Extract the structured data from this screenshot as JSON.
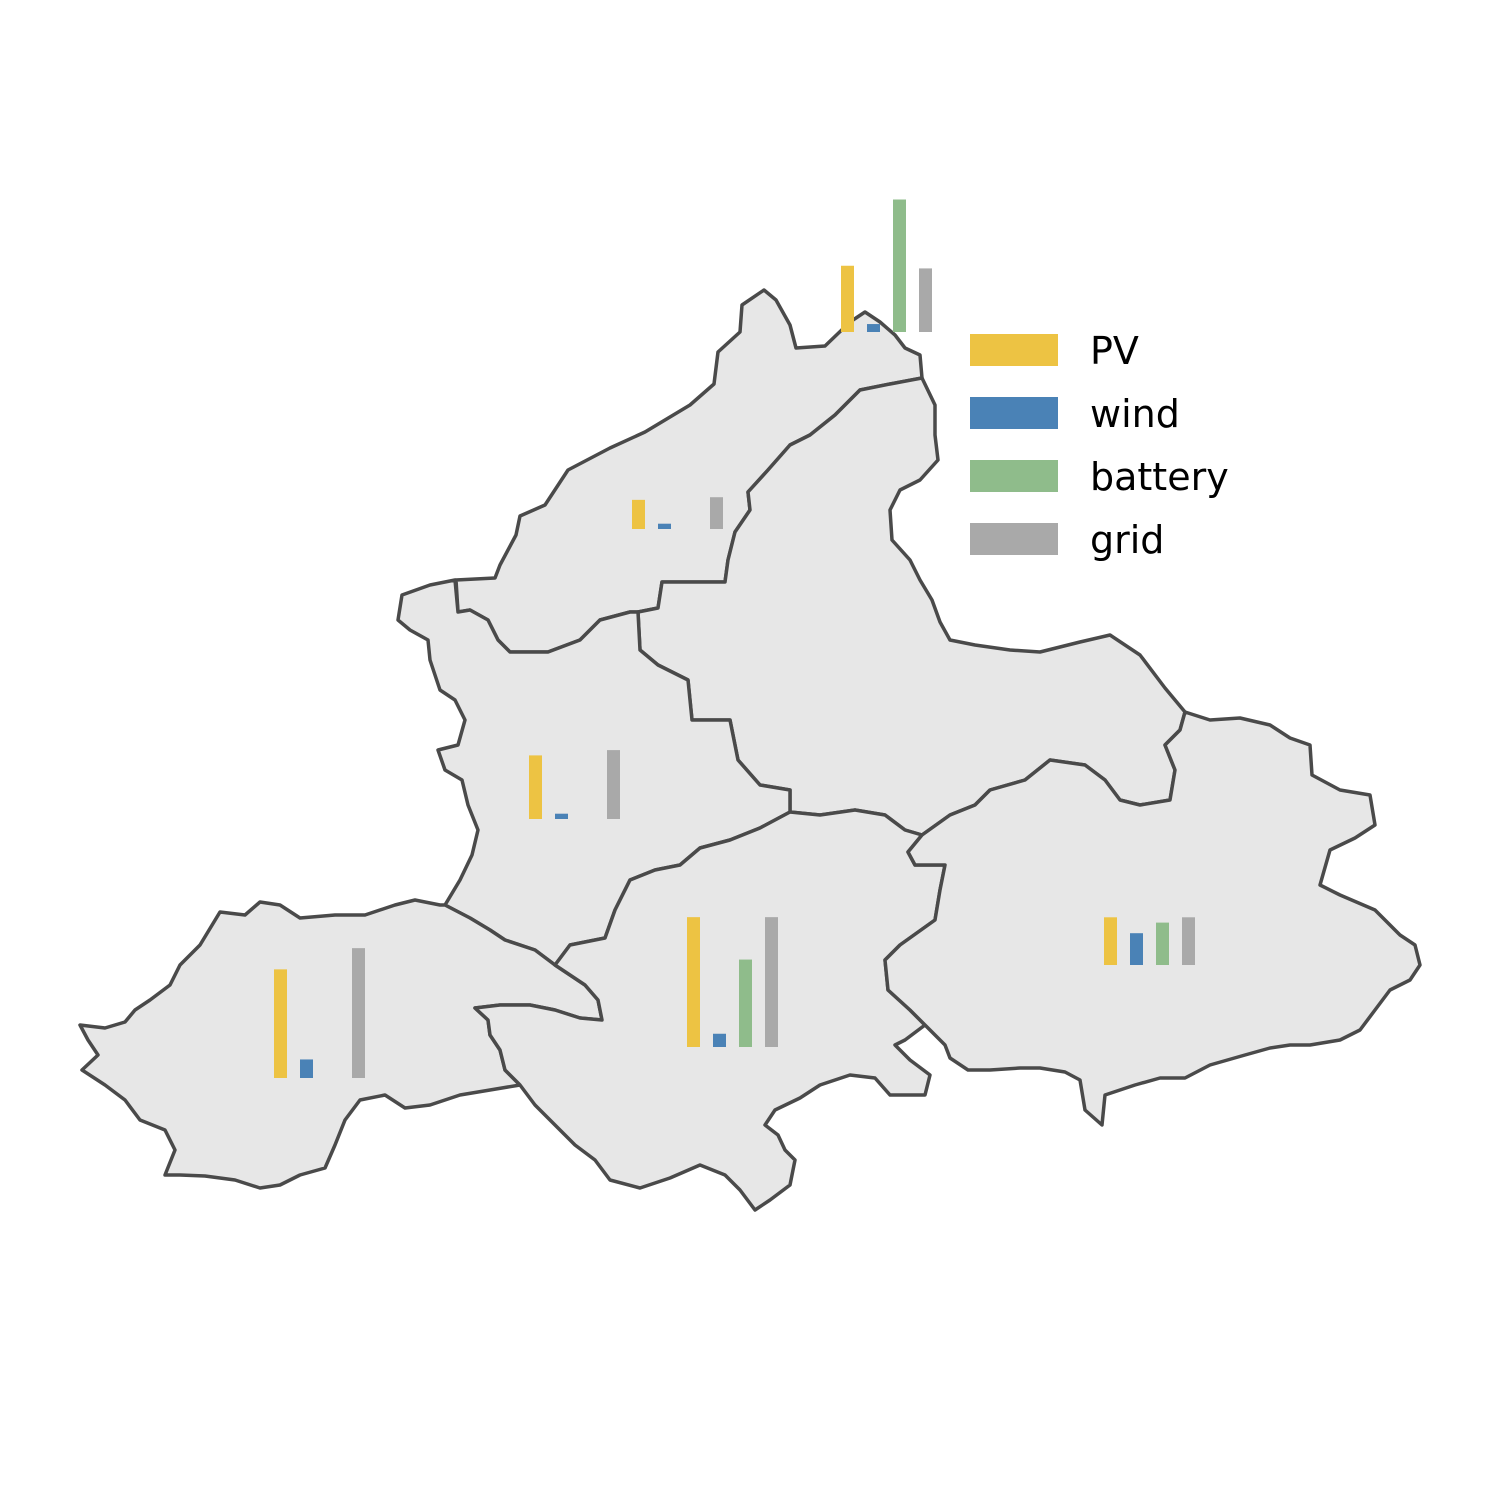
{
  "chart_data": {
    "type": "bar",
    "title": "",
    "categories": [
      "PV",
      "wind",
      "battery",
      "grid"
    ],
    "legend": {
      "placement": "top-right",
      "entries": [
        {
          "label": "PV",
          "color": "#edc343"
        },
        {
          "label": "wind",
          "color": "#4a82b6"
        },
        {
          "label": "battery",
          "color": "#8fbc8b"
        },
        {
          "label": "grid",
          "color": "#a9a9a9"
        }
      ]
    },
    "units": "relative",
    "regions": [
      {
        "id": "north",
        "values": [
          1.1,
          0.2,
          0,
          1.2
        ]
      },
      {
        "id": "northeast",
        "values": [
          2.5,
          0.3,
          5.0,
          2.4
        ]
      },
      {
        "id": "central-west",
        "values": [
          2.4,
          0.2,
          0,
          2.6
        ]
      },
      {
        "id": "southwest",
        "values": [
          4.1,
          0.7,
          0,
          4.9
        ]
      },
      {
        "id": "south-central",
        "values": [
          4.9,
          0.5,
          3.3,
          4.9
        ]
      },
      {
        "id": "east",
        "values": [
          1.8,
          1.2,
          1.6,
          1.8
        ]
      }
    ]
  }
}
